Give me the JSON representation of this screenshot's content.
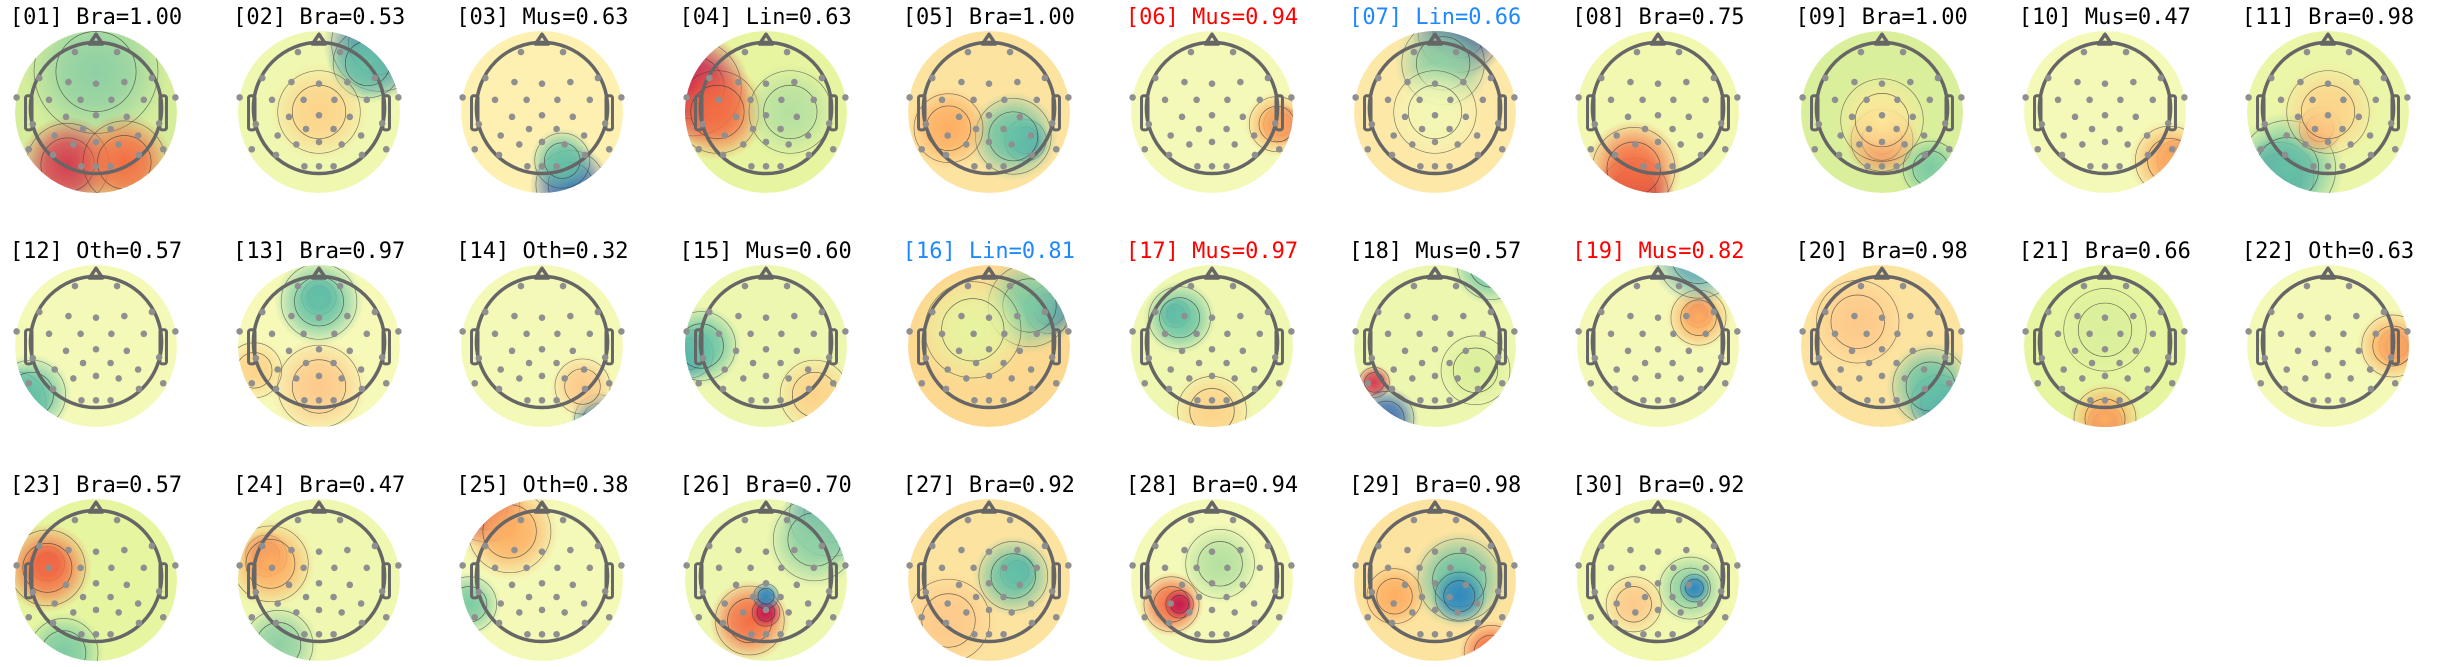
{
  "chart_data": {
    "type": "topomap",
    "colormap": "Spectral_r",
    "title_colors": {
      "default": "#000000",
      "flag_red": "#ff0000",
      "flag_blue": "#1e88ff"
    },
    "panels": [
      {
        "title": "[01] Bra=1.00",
        "label": "Bra",
        "score": 1.0,
        "color": "default"
      },
      {
        "title": "[02] Bra=0.53",
        "label": "Bra",
        "score": 0.53,
        "color": "default"
      },
      {
        "title": "[03] Mus=0.63",
        "label": "Mus",
        "score": 0.63,
        "color": "default"
      },
      {
        "title": "[04] Lin=0.63",
        "label": "Lin",
        "score": 0.63,
        "color": "default"
      },
      {
        "title": "[05] Bra=1.00",
        "label": "Bra",
        "score": 1.0,
        "color": "default"
      },
      {
        "title": "[06] Mus=0.94",
        "label": "Mus",
        "score": 0.94,
        "color": "flag_red"
      },
      {
        "title": "[07] Lin=0.66",
        "label": "Lin",
        "score": 0.66,
        "color": "flag_blue"
      },
      {
        "title": "[08] Bra=0.75",
        "label": "Bra",
        "score": 0.75,
        "color": "default"
      },
      {
        "title": "[09] Bra=1.00",
        "label": "Bra",
        "score": 1.0,
        "color": "default"
      },
      {
        "title": "[10] Mus=0.47",
        "label": "Mus",
        "score": 0.47,
        "color": "default"
      },
      {
        "title": "[11] Bra=0.98",
        "label": "Bra",
        "score": 0.98,
        "color": "default"
      },
      {
        "title": "[12] Oth=0.57",
        "label": "Oth",
        "score": 0.57,
        "color": "default"
      },
      {
        "title": "[13] Bra=0.97",
        "label": "Bra",
        "score": 0.97,
        "color": "default"
      },
      {
        "title": "[14] Oth=0.32",
        "label": "Oth",
        "score": 0.32,
        "color": "default"
      },
      {
        "title": "[15] Mus=0.60",
        "label": "Mus",
        "score": 0.6,
        "color": "default"
      },
      {
        "title": "[16] Lin=0.81",
        "label": "Lin",
        "score": 0.81,
        "color": "flag_blue"
      },
      {
        "title": "[17] Mus=0.97",
        "label": "Mus",
        "score": 0.97,
        "color": "flag_red"
      },
      {
        "title": "[18] Mus=0.57",
        "label": "Mus",
        "score": 0.57,
        "color": "default"
      },
      {
        "title": "[19] Mus=0.82",
        "label": "Mus",
        "score": 0.82,
        "color": "flag_red"
      },
      {
        "title": "[20] Bra=0.98",
        "label": "Bra",
        "score": 0.98,
        "color": "default"
      },
      {
        "title": "[21] Bra=0.66",
        "label": "Bra",
        "score": 0.66,
        "color": "default"
      },
      {
        "title": "[22] Oth=0.63",
        "label": "Oth",
        "score": 0.63,
        "color": "default"
      },
      {
        "title": "[23] Bra=0.57",
        "label": "Bra",
        "score": 0.57,
        "color": "default"
      },
      {
        "title": "[24] Bra=0.47",
        "label": "Bra",
        "score": 0.47,
        "color": "default"
      },
      {
        "title": "[25] Oth=0.38",
        "label": "Oth",
        "score": 0.38,
        "color": "default"
      },
      {
        "title": "[26] Bra=0.70",
        "label": "Bra",
        "score": 0.7,
        "color": "default"
      },
      {
        "title": "[27] Bra=0.92",
        "label": "Bra",
        "score": 0.92,
        "color": "default"
      },
      {
        "title": "[28] Bra=0.94",
        "label": "Bra",
        "score": 0.94,
        "color": "default"
      },
      {
        "title": "[29] Bra=0.98",
        "label": "Bra",
        "score": 0.98,
        "color": "default"
      },
      {
        "title": "[30] Bra=0.92",
        "label": "Bra",
        "score": 0.92,
        "color": "default"
      }
    ]
  }
}
